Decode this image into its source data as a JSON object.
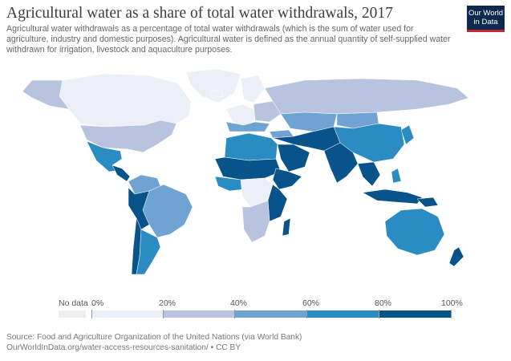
{
  "header": {
    "title": "Agricultural water as a share of total water withdrawals, 2017",
    "subtitle": "Agricultural water withdrawals as a percentage of total water withdrawals (which is the sum of water used for agriculture, industry and domestic purposes). Agricultural water is defined as the annual quantity of self-supplied water withdrawn for irrigation, livestock and aquaculture purposes."
  },
  "logo": {
    "line1": "Our World",
    "line2": "in Data",
    "colors": {
      "bg": "#0d2a4e",
      "accent": "#c7272e"
    }
  },
  "legend": {
    "no_data_label": "No data",
    "ticks": [
      "0%",
      "20%",
      "40%",
      "60%",
      "80%",
      "100%"
    ],
    "colors": {
      "no_data": "#eeeeee",
      "bin_0_20": "#edeff8",
      "bin_20_40": "#b8c3df",
      "bin_40_60": "#6fa3d1",
      "bin_60_80": "#2b8cc4",
      "bin_80_100": "#08548a"
    }
  },
  "map_data": {
    "year": 2017,
    "bins": [
      {
        "range": [
          0,
          20
        ],
        "regions": [
          "Canada",
          "Greenland",
          "Western Europe",
          "Northern Europe",
          "Democratic Republic of the Congo",
          "Gabon",
          "Central African Republic"
        ]
      },
      {
        "range": [
          20,
          40
        ],
        "regions": [
          "United States",
          "Russia",
          "Eastern Europe",
          "Alaska",
          "Angola",
          "Namibia",
          "South Africa",
          "Zambia"
        ]
      },
      {
        "range": [
          40,
          60
        ],
        "regions": [
          "Brazil",
          "Venezuela",
          "Colombia",
          "Central Asia",
          "Mongolia",
          "Turkey",
          "Southern Europe"
        ]
      },
      {
        "range": [
          60,
          80
        ],
        "regions": [
          "Mexico",
          "Argentina",
          "China",
          "Australia",
          "Southeast Asia",
          "Morocco",
          "Algeria",
          "Libya",
          "Egypt",
          "Japan",
          "Philippines"
        ]
      },
      {
        "range": [
          80,
          100
        ],
        "regions": [
          "India",
          "Pakistan",
          "Afghanistan",
          "Iran",
          "Saudi Arabia",
          "Yemen",
          "Iraq",
          "Syria",
          "Sudan",
          "Chad",
          "Niger",
          "Mali",
          "Mauritania",
          "Ethiopia",
          "Somalia",
          "Kenya",
          "Tanzania",
          "Madagascar",
          "Peru",
          "Chile",
          "Bolivia",
          "Bangladesh",
          "Myanmar",
          "Thailand",
          "Cambodia",
          "Indonesia",
          "New Zealand"
        ]
      }
    ]
  },
  "source": {
    "line1": "Source: Food and Agriculture Organization of the United Nations (via World Bank)",
    "line2": "OurWorldInData.org/water-access-resources-sanitation/ • CC BY"
  }
}
